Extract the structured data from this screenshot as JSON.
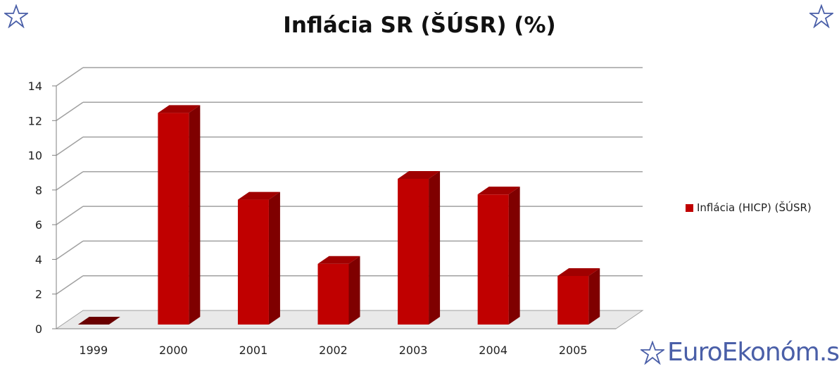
{
  "colors": {
    "bar_front": "#c00000",
    "bar_side": "#7f0000",
    "bar_top": "#a00000",
    "grid": "#a0a0a0",
    "brand": "#4a5fa8"
  },
  "icons": {
    "corner_left": "star-outline-icon",
    "corner_right": "star-outline-icon",
    "logo": "star-outline-icon"
  },
  "watermark": {
    "text": "EuroEkonóm.sk"
  },
  "chart_data": {
    "type": "bar",
    "title": "Inflácia SR (ŠÚSR) (%)",
    "xlabel": "",
    "ylabel": "",
    "categories": [
      "1999",
      "2000",
      "2001",
      "2002",
      "2003",
      "2004",
      "2005"
    ],
    "series": [
      {
        "name": "Inflácia (HICP) (ŠÚSR)",
        "values": [
          0.0,
          12.2,
          7.2,
          3.5,
          8.4,
          7.5,
          2.8
        ]
      }
    ],
    "ylim": [
      0,
      14
    ],
    "yticks": [
      "0",
      "2",
      "4",
      "6",
      "8",
      "10",
      "12",
      "14"
    ],
    "grid": true,
    "legend": "right",
    "three_d": true
  }
}
